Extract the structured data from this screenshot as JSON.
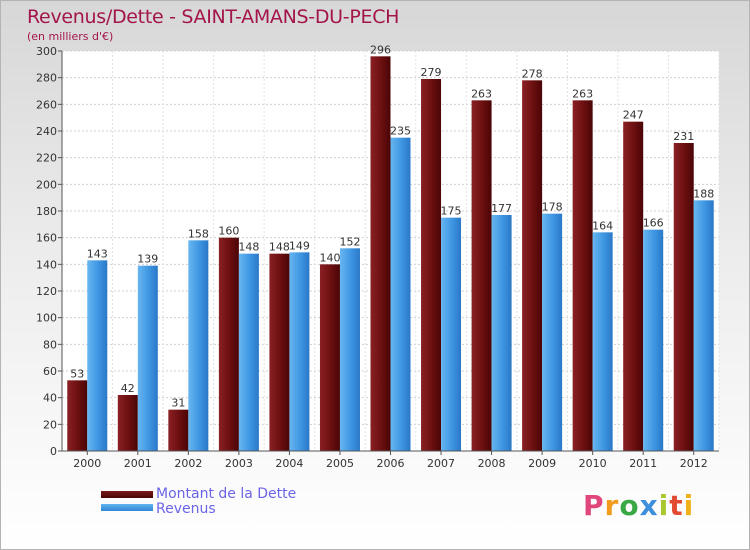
{
  "header": {
    "title": "Revenus/Dette - SAINT-AMANS-DU-PECH",
    "subtitle": "(en milliers d'€)"
  },
  "legend": {
    "debt_label": "Montant de la Dette",
    "revenue_label": "Revenus"
  },
  "logo": {
    "letters": [
      "P",
      "r",
      "o",
      "x",
      "i",
      "t",
      "i"
    ],
    "colors": [
      "#e0457b",
      "#f29c1f",
      "#39a845",
      "#3e8fdc",
      "#a9c82f",
      "#e34a32",
      "#f0b01a"
    ]
  },
  "colors": {
    "debt": "#6b0f10",
    "revenue": "#3d95e3",
    "title": "#a3154a",
    "legend_text": "#6b64e6"
  },
  "chart_data": {
    "type": "bar",
    "title": "Revenus/Dette - SAINT-AMANS-DU-PECH",
    "ylabel": "(en milliers d'€)",
    "xlabel": "",
    "categories": [
      "2000",
      "2001",
      "2002",
      "2003",
      "2004",
      "2005",
      "2006",
      "2007",
      "2008",
      "2009",
      "2010",
      "2011",
      "2012"
    ],
    "series": [
      {
        "name": "Montant de la Dette",
        "values": [
          53,
          42,
          31,
          160,
          148,
          140,
          296,
          279,
          263,
          278,
          263,
          247,
          231
        ]
      },
      {
        "name": "Revenus",
        "values": [
          143,
          139,
          158,
          148,
          149,
          152,
          235,
          175,
          177,
          178,
          164,
          166,
          188
        ]
      }
    ],
    "ylim": [
      0,
      300
    ],
    "yticks": [
      0,
      20,
      40,
      60,
      80,
      100,
      120,
      140,
      160,
      180,
      200,
      220,
      240,
      260,
      280,
      300
    ],
    "grid": true,
    "legend_position": "bottom-left"
  }
}
